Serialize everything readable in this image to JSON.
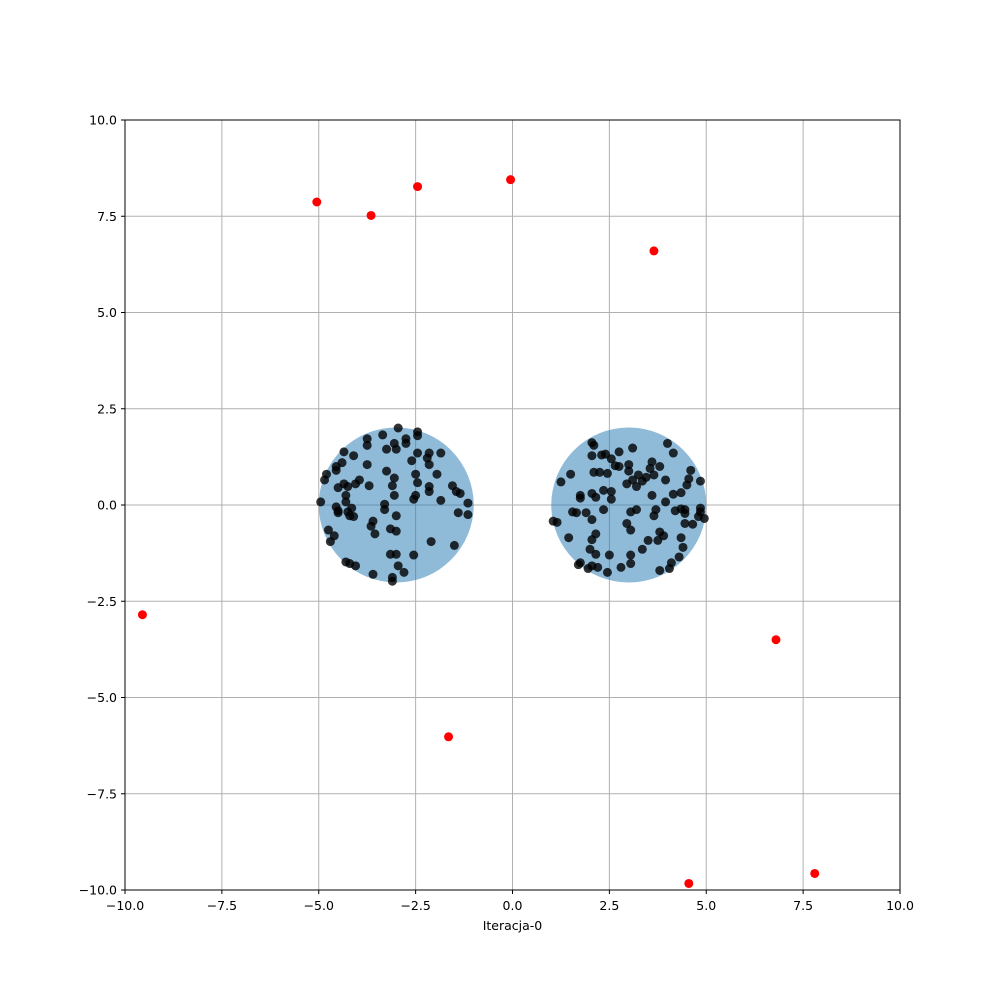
{
  "chart_data": {
    "type": "scatter",
    "title": "",
    "xlabel": "Iteracja-0",
    "ylabel": "",
    "xlim": [
      -10,
      10
    ],
    "ylim": [
      -10,
      10
    ],
    "grid": true,
    "x_ticks": [
      -10.0,
      -7.5,
      -5.0,
      -2.5,
      0.0,
      2.5,
      5.0,
      7.5,
      10.0
    ],
    "y_ticks": [
      -10.0,
      -7.5,
      -5.0,
      -2.5,
      0.0,
      2.5,
      5.0,
      7.5,
      10.0
    ],
    "x_tick_labels": [
      "−10.0",
      "−7.5",
      "−5.0",
      "−2.5",
      "0.0",
      "2.5",
      "5.0",
      "7.5",
      "10.0"
    ],
    "y_tick_labels": [
      "−10.0",
      "−7.5",
      "−5.0",
      "−2.5",
      "0.0",
      "2.5",
      "5.0",
      "7.5",
      "10.0"
    ],
    "colors": {
      "circle_fill": "#1f77b4",
      "circle_opacity": 0.5,
      "cluster_points": "#000000",
      "outlier_points": "#ff0000",
      "grid": "#b0b0b0"
    },
    "circles": [
      {
        "cx": -3.0,
        "cy": 0.0,
        "r": 2.0
      },
      {
        "cx": 3.0,
        "cy": 0.0,
        "r": 2.0
      }
    ],
    "outliers": [
      {
        "x": -5.05,
        "y": 7.87
      },
      {
        "x": -3.65,
        "y": 7.52
      },
      {
        "x": -2.45,
        "y": 8.27
      },
      {
        "x": -0.05,
        "y": 8.45
      },
      {
        "x": 3.65,
        "y": 6.6
      },
      {
        "x": -9.55,
        "y": -2.85
      },
      {
        "x": 6.8,
        "y": -3.5
      },
      {
        "x": -1.65,
        "y": -6.02
      },
      {
        "x": 4.55,
        "y": -9.83
      },
      {
        "x": 7.8,
        "y": -9.57
      }
    ],
    "cluster_points": [
      [
        -2.95,
        2.0
      ],
      [
        -2.45,
        1.9
      ],
      [
        -2.45,
        1.8
      ],
      [
        -3.75,
        1.72
      ],
      [
        -3.35,
        1.82
      ],
      [
        -3.05,
        1.6
      ],
      [
        -2.75,
        1.72
      ],
      [
        -2.75,
        1.6
      ],
      [
        -3.0,
        1.45
      ],
      [
        -3.25,
        1.45
      ],
      [
        -3.75,
        1.55
      ],
      [
        -4.35,
        1.38
      ],
      [
        -4.1,
        1.28
      ],
      [
        -2.15,
        1.35
      ],
      [
        -1.85,
        1.35
      ],
      [
        -2.45,
        1.35
      ],
      [
        -2.2,
        1.22
      ],
      [
        -2.6,
        1.15
      ],
      [
        -3.75,
        1.05
      ],
      [
        -4.4,
        1.1
      ],
      [
        -4.55,
        1.0
      ],
      [
        -4.8,
        0.8
      ],
      [
        -4.85,
        0.65
      ],
      [
        -4.55,
        0.9
      ],
      [
        -2.15,
        1.05
      ],
      [
        -1.95,
        0.8
      ],
      [
        -3.25,
        0.88
      ],
      [
        -3.05,
        0.7
      ],
      [
        -2.5,
        0.8
      ],
      [
        -3.95,
        0.65
      ],
      [
        -4.05,
        0.55
      ],
      [
        -4.35,
        0.55
      ],
      [
        -4.5,
        0.45
      ],
      [
        -4.25,
        0.48
      ],
      [
        -3.7,
        0.5
      ],
      [
        -3.1,
        0.5
      ],
      [
        -2.45,
        0.58
      ],
      [
        -2.15,
        0.48
      ],
      [
        -2.15,
        0.35
      ],
      [
        -1.55,
        0.5
      ],
      [
        -1.45,
        0.35
      ],
      [
        -1.35,
        0.3
      ],
      [
        -2.5,
        0.25
      ],
      [
        -2.55,
        0.15
      ],
      [
        -3.05,
        0.25
      ],
      [
        -4.3,
        0.25
      ],
      [
        -1.85,
        0.12
      ],
      [
        -4.3,
        0.08
      ],
      [
        -4.95,
        0.08
      ],
      [
        -3.3,
        0.02
      ],
      [
        -1.15,
        0.05
      ],
      [
        -4.55,
        -0.05
      ],
      [
        -3.3,
        -0.12
      ],
      [
        -4.15,
        -0.08
      ],
      [
        -4.25,
        -0.18
      ],
      [
        -4.5,
        -0.2
      ],
      [
        -4.1,
        -0.3
      ],
      [
        -3.0,
        -0.28
      ],
      [
        -4.2,
        -0.28
      ],
      [
        -1.4,
        -0.2
      ],
      [
        -1.15,
        -0.25
      ],
      [
        -4.5,
        -0.15
      ],
      [
        -3.6,
        -0.42
      ],
      [
        -3.65,
        -0.55
      ],
      [
        -3.15,
        -0.62
      ],
      [
        -3.0,
        -0.68
      ],
      [
        -3.55,
        -0.75
      ],
      [
        -4.75,
        -0.65
      ],
      [
        -4.6,
        -0.8
      ],
      [
        -4.7,
        -0.95
      ],
      [
        -2.1,
        -0.95
      ],
      [
        -1.5,
        -1.05
      ],
      [
        -3.0,
        -1.28
      ],
      [
        -3.15,
        -1.28
      ],
      [
        -2.55,
        -1.3
      ],
      [
        -4.3,
        -1.48
      ],
      [
        -4.2,
        -1.52
      ],
      [
        -4.05,
        -1.58
      ],
      [
        -2.95,
        -1.58
      ],
      [
        -3.6,
        -1.8
      ],
      [
        -2.8,
        -1.75
      ],
      [
        -3.1,
        -1.88
      ],
      [
        -3.1,
        -1.98
      ],
      [
        2.05,
        1.62
      ],
      [
        2.1,
        1.55
      ],
      [
        2.4,
        1.32
      ],
      [
        3.1,
        1.48
      ],
      [
        4.0,
        1.6
      ],
      [
        4.15,
        1.35
      ],
      [
        2.75,
        1.38
      ],
      [
        2.05,
        1.28
      ],
      [
        2.3,
        1.3
      ],
      [
        2.55,
        1.2
      ],
      [
        3.6,
        1.12
      ],
      [
        3.8,
        1.0
      ],
      [
        2.65,
        1.02
      ],
      [
        3.0,
        1.05
      ],
      [
        3.55,
        0.95
      ],
      [
        4.6,
        0.9
      ],
      [
        2.75,
        1.0
      ],
      [
        3.0,
        0.88
      ],
      [
        3.25,
        0.78
      ],
      [
        3.45,
        0.72
      ],
      [
        3.65,
        0.78
      ],
      [
        2.25,
        0.85
      ],
      [
        2.45,
        0.82
      ],
      [
        1.5,
        0.8
      ],
      [
        2.1,
        0.85
      ],
      [
        3.1,
        0.65
      ],
      [
        3.35,
        0.62
      ],
      [
        3.95,
        0.65
      ],
      [
        4.55,
        0.68
      ],
      [
        4.85,
        0.62
      ],
      [
        1.25,
        0.6
      ],
      [
        2.95,
        0.55
      ],
      [
        3.2,
        0.48
      ],
      [
        2.05,
        0.3
      ],
      [
        2.35,
        0.38
      ],
      [
        2.55,
        0.35
      ],
      [
        3.6,
        0.25
      ],
      [
        4.15,
        0.28
      ],
      [
        4.35,
        0.32
      ],
      [
        4.5,
        0.52
      ],
      [
        1.75,
        0.25
      ],
      [
        1.75,
        0.18
      ],
      [
        2.15,
        0.2
      ],
      [
        2.55,
        0.15
      ],
      [
        3.95,
        0.08
      ],
      [
        3.2,
        -0.12
      ],
      [
        3.05,
        -0.18
      ],
      [
        1.55,
        -0.18
      ],
      [
        1.65,
        -0.2
      ],
      [
        1.9,
        -0.2
      ],
      [
        2.35,
        -0.12
      ],
      [
        3.7,
        -0.12
      ],
      [
        4.35,
        -0.1
      ],
      [
        4.45,
        -0.12
      ],
      [
        4.85,
        -0.08
      ],
      [
        4.85,
        -0.18
      ],
      [
        4.45,
        -0.22
      ],
      [
        4.2,
        -0.15
      ],
      [
        4.95,
        -0.35
      ],
      [
        4.8,
        -0.3
      ],
      [
        2.05,
        -0.38
      ],
      [
        3.65,
        -0.28
      ],
      [
        1.05,
        -0.42
      ],
      [
        1.15,
        -0.45
      ],
      [
        4.45,
        -0.48
      ],
      [
        4.65,
        -0.5
      ],
      [
        2.95,
        -0.48
      ],
      [
        3.05,
        -0.65
      ],
      [
        3.8,
        -0.7
      ],
      [
        3.9,
        -0.8
      ],
      [
        3.5,
        -0.92
      ],
      [
        3.75,
        -0.92
      ],
      [
        2.15,
        -0.75
      ],
      [
        2.05,
        -0.9
      ],
      [
        1.45,
        -0.85
      ],
      [
        4.35,
        -0.85
      ],
      [
        4.4,
        -1.1
      ],
      [
        4.3,
        -1.35
      ],
      [
        3.35,
        -1.15
      ],
      [
        3.05,
        -1.3
      ],
      [
        2.5,
        -1.3
      ],
      [
        2.15,
        -1.28
      ],
      [
        2.0,
        -1.15
      ],
      [
        4.1,
        -1.5
      ],
      [
        3.05,
        -1.52
      ],
      [
        2.05,
        -1.58
      ],
      [
        2.2,
        -1.62
      ],
      [
        2.8,
        -1.62
      ],
      [
        1.75,
        -1.5
      ],
      [
        1.7,
        -1.55
      ],
      [
        1.95,
        -1.65
      ],
      [
        3.8,
        -1.7
      ],
      [
        4.05,
        -1.65
      ],
      [
        2.45,
        -1.75
      ]
    ]
  }
}
